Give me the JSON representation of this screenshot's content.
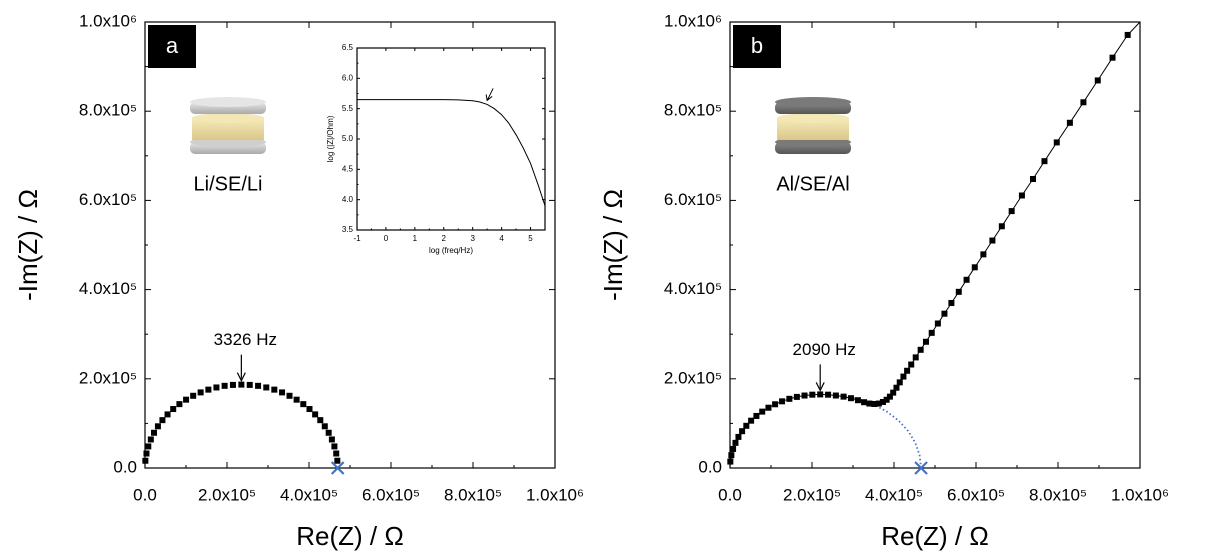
{
  "chart_data": [
    {
      "type": "scatter",
      "panel_label": "a",
      "cell_label": "Li/SE/Li",
      "x_label": "Re(Z) / Ω",
      "y_label": "-Im(Z) / Ω",
      "color": "#000000",
      "xlim": [
        0,
        1000000
      ],
      "ylim": [
        0,
        1000000
      ],
      "xticks": [
        {
          "value": 0,
          "label": "0.0"
        },
        {
          "value": 200000,
          "label": "2.0x10⁵"
        },
        {
          "value": 400000,
          "label": "4.0x10⁵"
        },
        {
          "value": 600000,
          "label": "6.0x10⁵"
        },
        {
          "value": 800000,
          "label": "8.0x10⁵"
        },
        {
          "value": 1000000,
          "label": "1.0x10⁶"
        }
      ],
      "yticks": [
        {
          "value": 0,
          "label": "0.0"
        },
        {
          "value": 200000,
          "label": "2.0x10⁵"
        },
        {
          "value": 400000,
          "label": "4.0x10⁵"
        },
        {
          "value": 600000,
          "label": "6.0x10⁵"
        },
        {
          "value": 800000,
          "label": "8.0x10⁵"
        },
        {
          "value": 1000000,
          "label": "1.0x10⁶"
        }
      ],
      "x": [
        900,
        3570,
        8010,
        14200,
        22000,
        31500,
        42500,
        55000,
        68800,
        83900,
        100200,
        117500,
        135700,
        154600,
        174200,
        194200,
        214500,
        235000,
        255500,
        275800,
        295800,
        315400,
        334300,
        352500,
        369800,
        386100,
        401200,
        415000,
        427500,
        438500,
        448000,
        455800,
        462000,
        466400,
        469100
      ],
      "values": [
        16300,
        32500,
        48400,
        64000,
        79000,
        93500,
        107300,
        120200,
        132200,
        143200,
        153200,
        161900,
        169500,
        175700,
        180600,
        184200,
        186300,
        187000,
        186300,
        184200,
        180600,
        175700,
        169500,
        161900,
        153200,
        143200,
        132200,
        120200,
        107300,
        93500,
        79000,
        64000,
        48400,
        32500,
        16300
      ],
      "marker": {
        "x": 470000,
        "y": 0,
        "color": "#4472c4"
      },
      "annotations": [
        {
          "text": "3326 Hz",
          "x": 235000,
          "y": 187000
        }
      ]
    },
    {
      "type": "line",
      "x_label": "log (freq/Hz)",
      "y_label": "log (|Z|/Ohm)",
      "color": "#000000",
      "xlim": [
        -1,
        5.5
      ],
      "ylim": [
        3.5,
        6.5
      ],
      "xticks": [
        -1,
        0,
        1,
        2,
        3,
        4,
        5
      ],
      "yticks": [
        3.5,
        {
          "value": 4,
          "label": "4.0"
        },
        4.5,
        {
          "value": 5,
          "label": "5.0"
        },
        5.5,
        {
          "value": 6,
          "label": "6.0"
        },
        6.5
      ],
      "x": [
        -1,
        0,
        1,
        2,
        2.5,
        3,
        3.25,
        3.5,
        3.75,
        4,
        4.25,
        4.5,
        4.75,
        5,
        5.25,
        5.5
      ],
      "values": [
        5.65,
        5.65,
        5.65,
        5.65,
        5.645,
        5.63,
        5.61,
        5.57,
        5.5,
        5.4,
        5.26,
        5.07,
        4.85,
        4.6,
        4.26,
        3.9
      ]
    },
    {
      "type": "scatter",
      "line": true,
      "panel_label": "b",
      "cell_label": "Al/SE/Al",
      "x_label": "Re(Z) / Ω",
      "y_label": "-Im(Z) / Ω",
      "color": "#000000",
      "xlim": [
        0,
        1000000
      ],
      "ylim": [
        0,
        1000000
      ],
      "xticks": [
        {
          "value": 0,
          "label": "0.0"
        },
        {
          "value": 200000,
          "label": "2.0x10⁵"
        },
        {
          "value": 400000,
          "label": "4.0x10⁵"
        },
        {
          "value": 600000,
          "label": "6.0x10⁵"
        },
        {
          "value": 800000,
          "label": "8.0x10⁵"
        },
        {
          "value": 1000000,
          "label": "1.0x10⁶"
        }
      ],
      "yticks": [
        {
          "value": 0,
          "label": "0.0"
        },
        {
          "value": 200000,
          "label": "2.0x10⁵"
        },
        {
          "value": 400000,
          "label": "4.0x10⁵"
        },
        {
          "value": 600000,
          "label": "6.0x10⁵"
        },
        {
          "value": 800000,
          "label": "8.0x10⁵"
        },
        {
          "value": 1000000,
          "label": "1.0x10⁶"
        }
      ],
      "x": [
        800,
        3300,
        7500,
        13300,
        20600,
        29500,
        39800,
        51500,
        64400,
        78600,
        93800,
        110000,
        127000,
        144800,
        163100,
        181800,
        200800,
        220000,
        239200,
        258200,
        277000,
        295000,
        312000,
        327000,
        340000,
        352000,
        363000,
        373000,
        382000,
        390000,
        398000,
        406000,
        414000,
        423000,
        432000,
        442000,
        453000,
        465000,
        478000,
        492000,
        507000,
        523000,
        540000,
        558000,
        577000,
        597000,
        618000,
        640000,
        663000,
        687000,
        712000,
        739000,
        767000,
        797000,
        829000,
        862000,
        897000,
        933000,
        970000
      ],
      "values": [
        14400,
        28700,
        42700,
        56400,
        69700,
        82500,
        94600,
        106100,
        116700,
        126400,
        135200,
        142900,
        149500,
        155100,
        159400,
        162500,
        164400,
        165000,
        164400,
        162500,
        160000,
        156500,
        152000,
        147500,
        144500,
        143500,
        144500,
        148000,
        153000,
        160000,
        169000,
        180000,
        192000,
        205000,
        218000,
        232000,
        248000,
        265000,
        283000,
        303000,
        324000,
        346000,
        370000,
        395000,
        422000,
        450000,
        479000,
        510000,
        542000,
        576000,
        611000,
        648000,
        688000,
        730000,
        774000,
        820000,
        869000,
        920000,
        971000
      ],
      "fit": {
        "color": "#4472c4",
        "x": [
          233000,
          273500,
          312700,
          349500,
          382800,
          411500,
          434800,
          452000,
          462500,
          466000
        ],
        "values": [
          165000,
          162500,
          155000,
          142900,
          126400,
          106100,
          82500,
          56400,
          28700,
          0
        ]
      },
      "marker": {
        "x": 466000,
        "y": 0,
        "color": "#4472c4"
      },
      "annotations": [
        {
          "text": "2090 Hz",
          "x": 220000,
          "y": 165000
        }
      ]
    }
  ]
}
